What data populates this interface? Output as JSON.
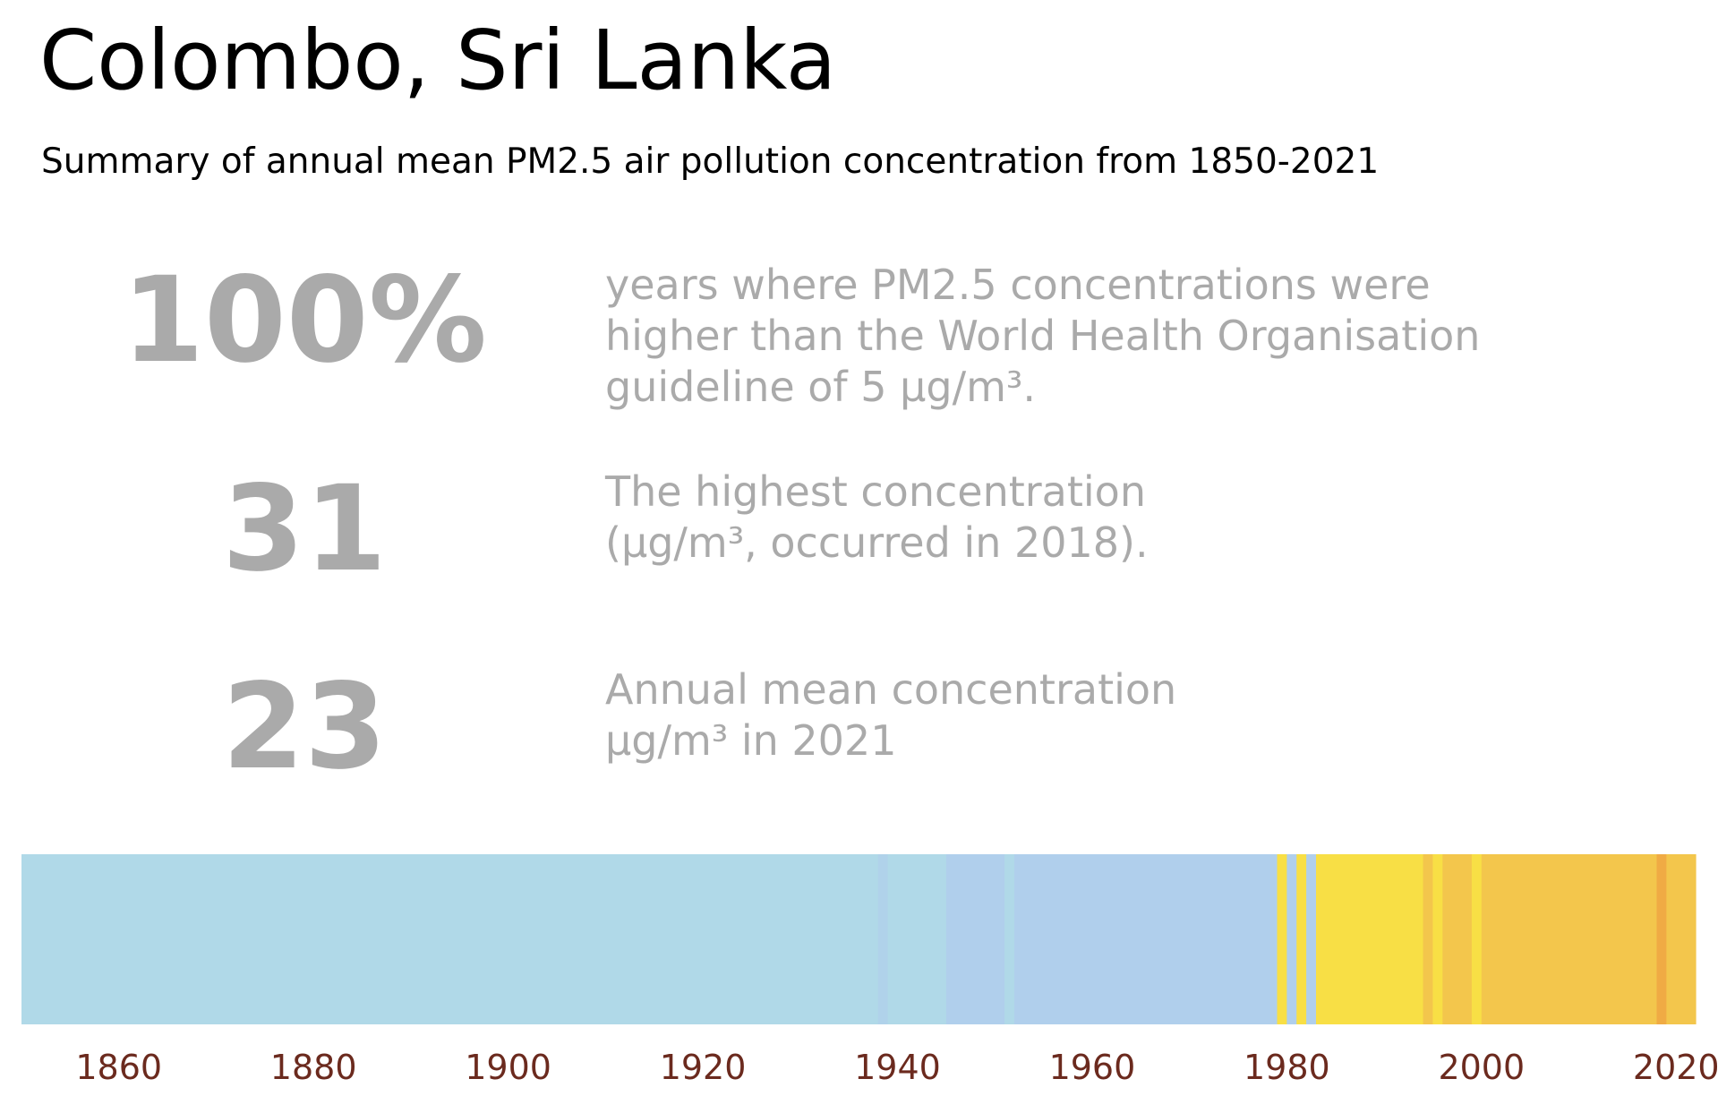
{
  "title": "Colombo, Sri Lanka",
  "subtitle": "Summary of annual mean PM2.5 air pollution concentration from 1850-2021",
  "stats": [
    {
      "value": "100%",
      "lines": [
        "years where PM2.5 concentrations were",
        "higher than the World Health Organisation",
        "guideline of 5 µg/m³."
      ]
    },
    {
      "value": "31",
      "lines": [
        "The highest concentration",
        "(µg/m³, occurred in 2018)."
      ]
    },
    {
      "value": "23",
      "lines": [
        "Annual mean concentration",
        "µg/m³ in 2021"
      ]
    }
  ],
  "colors": {
    "light_blue": "#b0d9e8",
    "blue": "#b0cfec",
    "yellow": "#f8df45",
    "amber": "#f3c64c",
    "orange": "#f0ab44",
    "stat_text": "#aaaaaa",
    "tick_text": "#6b2a1e"
  },
  "chart_data": {
    "type": "heatmap",
    "xlim": [
      1850,
      2022
    ],
    "x_ticks": [
      1860,
      1880,
      1900,
      1920,
      1940,
      1960,
      1980,
      2000,
      2020
    ],
    "tick_labels": [
      "1860",
      "1880",
      "1900",
      "1920",
      "1940",
      "1960",
      "1980",
      "2000",
      "2020"
    ],
    "segments": [
      {
        "start": 1850,
        "end": 1938,
        "color": "#b0d9e8"
      },
      {
        "start": 1938,
        "end": 1939,
        "color": "#b0d2ea"
      },
      {
        "start": 1939,
        "end": 1945,
        "color": "#b0d9e8"
      },
      {
        "start": 1945,
        "end": 1951,
        "color": "#b0cfec"
      },
      {
        "start": 1951,
        "end": 1952,
        "color": "#b0d9e8"
      },
      {
        "start": 1952,
        "end": 1979,
        "color": "#b0cfec"
      },
      {
        "start": 1979,
        "end": 1980,
        "color": "#f8df45"
      },
      {
        "start": 1980,
        "end": 1981,
        "color": "#b0cfec"
      },
      {
        "start": 1981,
        "end": 1982,
        "color": "#f8df45"
      },
      {
        "start": 1982,
        "end": 1983,
        "color": "#b0cfec"
      },
      {
        "start": 1983,
        "end": 1994,
        "color": "#f8df45"
      },
      {
        "start": 1994,
        "end": 1995,
        "color": "#f3c64c"
      },
      {
        "start": 1995,
        "end": 1996,
        "color": "#f8df45"
      },
      {
        "start": 1996,
        "end": 1999,
        "color": "#f3c64c"
      },
      {
        "start": 1999,
        "end": 2000,
        "color": "#f8df45"
      },
      {
        "start": 2000,
        "end": 2018,
        "color": "#f3c64c"
      },
      {
        "start": 2018,
        "end": 2019,
        "color": "#f0ab44"
      },
      {
        "start": 2019,
        "end": 2022,
        "color": "#f3c64c"
      }
    ]
  }
}
